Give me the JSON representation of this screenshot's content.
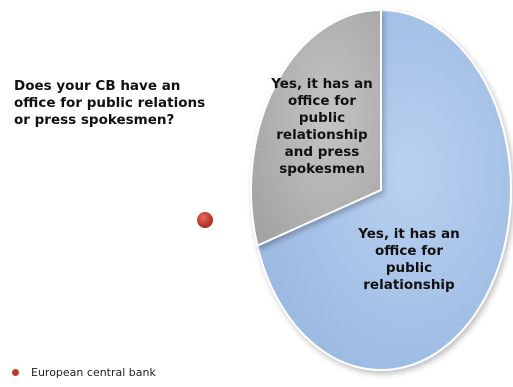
{
  "chart_data": {
    "type": "pie",
    "title_lines": [
      "Does your CB have an",
      "office for public relations",
      "or press spokesmen?"
    ],
    "slices": [
      {
        "label_lines": [
          "Yes, it has an",
          "office for",
          "public",
          "relationship"
        ],
        "value": 0.7,
        "color": "#a7c3e9"
      },
      {
        "label_lines": [
          "Yes, it has an",
          "office for",
          "public",
          "relationship",
          "and press",
          "spokesmen"
        ],
        "value": 0.3,
        "color": "#b3b3b3"
      }
    ],
    "marker_color": "#c0392b",
    "legend": [
      {
        "label": "European central bank",
        "color": "#c0392b"
      }
    ]
  }
}
